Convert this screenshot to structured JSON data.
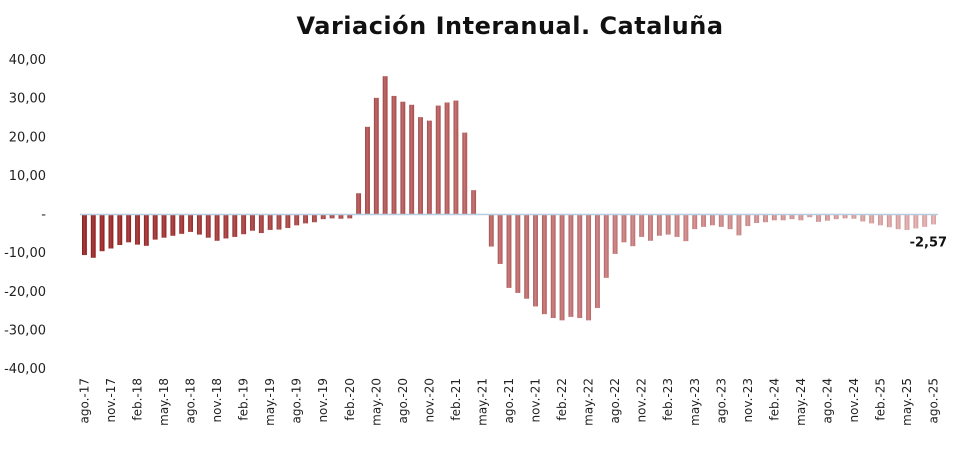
{
  "chart_data": {
    "type": "bar",
    "title": "Variación Interanual. Cataluña",
    "xlabel": "",
    "ylabel": "",
    "ylim": [
      -40,
      40
    ],
    "yticks": [
      40,
      30,
      20,
      10,
      0,
      -10,
      -20,
      -30,
      -40
    ],
    "ytick_labels": [
      "40,00",
      "30,00",
      "20,00",
      "10,00",
      "-",
      "-10,00",
      "-20,00",
      "-30,00",
      "-40,00"
    ],
    "grid": false,
    "legend": "none",
    "colors": {
      "early": "#9b1c1c",
      "late": "#eab0b0",
      "zero_line": "#b7cde2"
    },
    "categories": [
      "ago.-17",
      "sep.-17",
      "oct.-17",
      "nov.-17",
      "dic.-17",
      "ene.-18",
      "feb.-18",
      "mar.-18",
      "abr.-18",
      "may.-18",
      "jun.-18",
      "jul.-18",
      "ago.-18",
      "sep.-18",
      "oct.-18",
      "nov.-18",
      "dic.-18",
      "ene.-19",
      "feb.-19",
      "mar.-19",
      "abr.-19",
      "may.-19",
      "jun.-19",
      "jul.-19",
      "ago.-19",
      "sep.-19",
      "oct.-19",
      "nov.-19",
      "dic.-19",
      "ene.-20",
      "feb.-20",
      "mar.-20",
      "abr.-20",
      "may.-20",
      "jun.-20",
      "jul.-20",
      "ago.-20",
      "sep.-20",
      "oct.-20",
      "nov.-20",
      "dic.-20",
      "ene.-21",
      "feb.-21",
      "mar.-21",
      "abr.-21",
      "may.-21",
      "jun.-21",
      "jul.-21",
      "ago.-21",
      "sep.-21",
      "oct.-21",
      "nov.-21",
      "dic.-21",
      "ene.-22",
      "feb.-22",
      "mar.-22",
      "abr.-22",
      "may.-22",
      "jun.-22",
      "jul.-22",
      "ago.-22",
      "sep.-22",
      "oct.-22",
      "nov.-22",
      "dic.-22",
      "ene.-23",
      "feb.-23",
      "mar.-23",
      "abr.-23",
      "may.-23",
      "jun.-23",
      "jul.-23",
      "ago.-23",
      "sep.-23",
      "oct.-23",
      "nov.-23",
      "dic.-23",
      "ene.-24",
      "feb.-24",
      "mar.-24",
      "abr.-24",
      "may.-24",
      "jun.-24",
      "jul.-24",
      "ago.-24",
      "sep.-24",
      "oct.-24",
      "nov.-24",
      "dic.-24",
      "ene.-25",
      "feb.-25",
      "mar.-25",
      "abr.-25",
      "may.-25",
      "jun.-25",
      "jul.-25",
      "ago.-25"
    ],
    "tick_labels_shown": [
      "ago.-17",
      "nov.-17",
      "feb.-18",
      "may.-18",
      "ago.-18",
      "nov.-18",
      "feb.-19",
      "may.-19",
      "ago.-19",
      "nov.-19",
      "feb.-20",
      "may.-20",
      "ago.-20",
      "nov.-20",
      "feb.-21",
      "may.-21",
      "ago.-21",
      "nov.-21",
      "feb.-22",
      "may.-22",
      "ago.-22",
      "nov.-22",
      "feb.-23",
      "may.-23",
      "ago.-23",
      "nov.-23",
      "feb.-24",
      "may.-24",
      "ago.-24",
      "nov.-24",
      "feb.-25",
      "may.-25",
      "ago.-25"
    ],
    "values": [
      -10.5,
      -11.2,
      -9.5,
      -8.8,
      -7.9,
      -7.2,
      -7.8,
      -8.1,
      -6.5,
      -6.0,
      -5.5,
      -5.0,
      -4.5,
      -5.2,
      -6.0,
      -6.8,
      -6.2,
      -5.8,
      -5.1,
      -4.2,
      -4.8,
      -4.0,
      -3.9,
      -3.5,
      -2.8,
      -2.3,
      -2.0,
      -1.2,
      -1.0,
      -1.1,
      -1.0,
      5.5,
      22.7,
      30.2,
      35.8,
      30.7,
      29.2,
      28.4,
      25.2,
      24.3,
      28.2,
      29.0,
      29.5,
      21.2,
      6.3,
      0,
      -8.3,
      -12.8,
      -19.0,
      -20.3,
      -21.8,
      -23.8,
      -25.8,
      -26.8,
      -27.4,
      -26.5,
      -26.8,
      -27.4,
      -24.2,
      -16.4,
      -10.2,
      -7.2,
      -8.2,
      -5.8,
      -6.8,
      -5.5,
      -5.2,
      -5.8,
      -6.9,
      -3.8,
      -3.2,
      -2.8,
      -3.2,
      -3.8,
      -5.4,
      -3.0,
      -2.2,
      -2.0,
      -1.5,
      -1.5,
      -1.2,
      -1.5,
      -0.7,
      -1.9,
      -1.6,
      -1.2,
      -1.0,
      -1.1,
      -1.8,
      -2.3,
      -2.8,
      -3.3,
      -3.8,
      -4.0,
      -3.6,
      -3.2,
      -2.57
    ],
    "annotation": {
      "category": "ago.-25",
      "text": "-2,57"
    }
  }
}
